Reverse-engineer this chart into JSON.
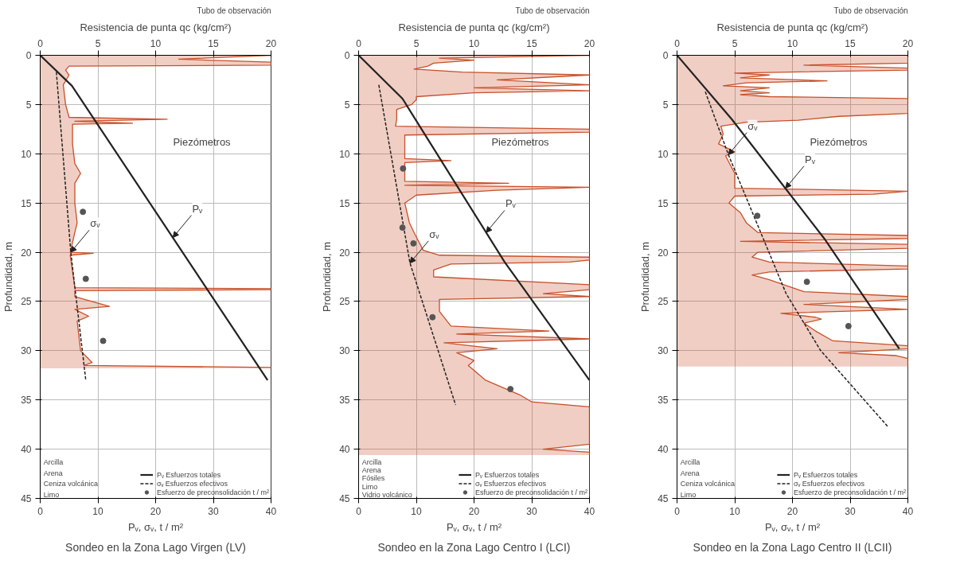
{
  "chart_data": [
    {
      "type": "line",
      "title": "Sondeo en la Zona Lago Virgen (LV)",
      "xlabel": "Pᵥ, σᵥ, t / m²",
      "x2label": "Resistencia de punta qc (kg/cm²)",
      "ylabel": "Profundidad, m",
      "orientation": "horizontal",
      "xlim": [
        0,
        40
      ],
      "xticks": [
        0,
        10,
        20,
        30,
        40
      ],
      "x2lim": [
        0,
        20
      ],
      "x2ticks": [
        0,
        5,
        10,
        15,
        20
      ],
      "ylim": [
        45,
        0
      ],
      "yticks": [
        0,
        5,
        10,
        15,
        20,
        25,
        30,
        35,
        40,
        45
      ],
      "grid": true,
      "legend": "bottom right",
      "series": [
        {
          "type": "area",
          "axis": "x2",
          "color": "#c8502a",
          "values": [
            20,
            12,
            20,
            20,
            2.5,
            2.2,
            2.5,
            2,
            2.2,
            2.5,
            11,
            3,
            8,
            2.8,
            2.8,
            3,
            3.5,
            3,
            3,
            3.2,
            3,
            2.6,
            4.6,
            2.6,
            3,
            20,
            20,
            3,
            3,
            6,
            3,
            4.2,
            3.2,
            3.5,
            4.5,
            3.8,
            20,
            20
          ],
          "x": [
            0,
            0.4,
            0.7,
            1.0,
            1.1,
            1.5,
            2,
            3,
            5,
            6.3,
            6.5,
            6.7,
            6.9,
            7,
            9,
            11,
            12,
            13,
            15,
            17,
            18,
            20,
            20.1,
            20.3,
            23.6,
            23.7,
            23.8,
            23.9,
            24.5,
            25.5,
            25.8,
            26.5,
            27,
            30,
            31.2,
            31.5,
            31.7,
            31.8
          ]
        },
        {
          "name": "Pᵥ Esfuerzos totales",
          "color": "#222222",
          "line_style": "solid",
          "values": [
            0,
            5.5,
            39.4
          ],
          "x": [
            0,
            3.1,
            33
          ]
        },
        {
          "name": "σᵥ Esfuerzos efectivos",
          "color": "#222222",
          "line_style": "dashed",
          "values": [
            2.8,
            5.3,
            7.9
          ],
          "x": [
            1.7,
            20,
            33
          ]
        },
        {
          "type": "scatter",
          "name": "Esfuerzo de preconsolidación t / m²",
          "color": "#555555",
          "marker": "circle",
          "values": [
            7.4,
            7.9,
            10.9
          ],
          "x": [
            15.9,
            22.7,
            29
          ]
        }
      ],
      "annotations": [
        "Tubo de observación",
        "Piezómetros",
        "Arcilla",
        "Arena",
        "Ceniza volcánica",
        "Limo",
        {
          "text": "Pᵥ",
          "x": 23,
          "y": 18.5
        },
        {
          "text": "σᵥ",
          "x": 5.3,
          "y": 20
        }
      ]
    },
    {
      "type": "line",
      "title": "Sondeo en la Zona Lago Centro I (LCI)",
      "xlabel": "Pᵥ, σᵥ, t / m²",
      "x2label": "Resistencia de punta qc (kg/cm²)",
      "ylabel": "Profundidad, m",
      "orientation": "horizontal",
      "xlim": [
        0,
        40
      ],
      "xticks": [
        0,
        10,
        20,
        30,
        40
      ],
      "x2lim": [
        0,
        20
      ],
      "x2ticks": [
        0,
        5,
        10,
        15,
        20
      ],
      "ylim": [
        45,
        0
      ],
      "yticks": [
        0,
        5,
        10,
        15,
        20,
        25,
        30,
        35,
        40,
        45
      ],
      "grid": true,
      "legend": "bottom right",
      "series": [
        {
          "type": "area",
          "axis": "x2",
          "color": "#c8502a",
          "values": [
            20,
            7,
            10,
            6.5,
            6,
            4.8,
            9,
            20,
            12,
            20,
            10,
            20,
            10,
            5,
            5,
            4.6,
            3.3,
            3.3,
            3.2,
            20,
            20,
            4,
            4,
            8,
            4,
            4,
            13,
            4,
            20,
            12,
            5,
            4,
            4.4,
            4.8,
            5.6,
            7,
            20,
            20,
            18.3,
            8,
            6.5,
            6.5,
            20,
            20,
            16,
            20,
            7,
            7,
            7,
            8,
            16.5,
            8.5,
            20,
            7.4,
            12,
            8.5,
            10,
            9.5,
            10,
            11,
            14,
            15,
            20,
            20,
            16,
            20,
            20
          ],
          "x": [
            0,
            0.3,
            0.5,
            0.8,
            1.1,
            1.4,
            1.7,
            2,
            2.5,
            3,
            3.3,
            3.6,
            3.8,
            4.2,
            4.5,
            5,
            5.5,
            6.5,
            7.2,
            7.5,
            7.8,
            8.1,
            10.5,
            10.7,
            10.9,
            12.8,
            13,
            13.2,
            13.4,
            13.7,
            14.2,
            15,
            17,
            18,
            19.8,
            20.3,
            20.5,
            20.8,
            21,
            21.2,
            21.8,
            22.5,
            23.3,
            23.8,
            24.2,
            24.5,
            24.8,
            25,
            26,
            27.5,
            28,
            28.3,
            28.8,
            29.2,
            29.8,
            30.2,
            31,
            31.5,
            32,
            33,
            34.5,
            35.2,
            35.7,
            39.5,
            40,
            40.3,
            40.6
          ]
        },
        {
          "name": "Pᵥ Esfuerzos totales",
          "color": "#222222",
          "line_style": "solid",
          "values": [
            0,
            7.6,
            25.3,
            40
          ],
          "x": [
            0,
            4.4,
            21,
            33
          ]
        },
        {
          "name": "σᵥ Esfuerzos efectivos",
          "color": "#222222",
          "line_style": "dashed",
          "values": [
            3.5,
            8.9,
            16.8
          ],
          "x": [
            3,
            21.1,
            35.5
          ]
        },
        {
          "type": "scatter",
          "name": "Esfuerzo de preconsolidación t / m²",
          "color": "#555555",
          "marker": "circle",
          "values": [
            7.7,
            7.6,
            9.5,
            12.8,
            26.3
          ],
          "x": [
            11.5,
            17.5,
            19.1,
            26.6,
            33.9
          ]
        }
      ],
      "annotations": [
        "Tubo de observación",
        "Piezómetros",
        "Arcilla",
        "Arena",
        "Fósiles",
        "Limo",
        "Vidrio volcánico",
        {
          "text": "Pᵥ",
          "x": 22.1,
          "y": 18
        },
        {
          "text": "σᵥ",
          "x": 8.9,
          "y": 21.1
        }
      ]
    },
    {
      "type": "line",
      "title": "Sondeo en la Zona Lago Centro II (LCII)",
      "xlabel": "Pᵥ, σᵥ, t / m²",
      "x2label": "Resistencia de punta qc (kg/cm²)",
      "ylabel": "Profundidad, m",
      "orientation": "horizontal",
      "xlim": [
        0,
        40
      ],
      "xticks": [
        0,
        10,
        20,
        30,
        40
      ],
      "x2lim": [
        0,
        20
      ],
      "x2ticks": [
        0,
        5,
        10,
        15,
        20
      ],
      "ylim": [
        45,
        0
      ],
      "yticks": [
        0,
        5,
        10,
        15,
        20,
        25,
        30,
        35,
        40,
        45
      ],
      "grid": true,
      "legend": "bottom right",
      "series": [
        {
          "type": "area",
          "axis": "x2",
          "color": "#c8502a",
          "values": [
            20,
            20,
            11,
            20,
            20,
            5,
            8,
            5.5,
            13,
            6,
            4,
            8,
            5.5,
            8,
            5.5,
            8,
            20,
            20,
            20,
            20,
            20,
            14,
            10.5,
            6,
            3.8,
            4,
            3.6,
            5,
            4.2,
            5,
            5,
            20,
            17,
            5,
            4.5,
            5.5,
            6,
            7,
            20,
            20,
            5.5,
            20,
            20,
            7,
            6.5,
            8,
            20,
            20,
            8,
            6.5,
            8,
            11,
            20,
            20,
            11,
            20,
            9,
            12,
            12.5,
            11,
            12,
            13.5,
            20,
            20,
            14,
            19,
            20,
            20,
            20
          ],
          "x": [
            0,
            0.8,
            1.0,
            1.3,
            1.5,
            1.8,
            2.0,
            2.3,
            2.6,
            2.8,
            3.1,
            3.3,
            3.6,
            3.8,
            4.0,
            4.2,
            4.4,
            4.7,
            5.2,
            5.6,
            5.9,
            6.2,
            6.6,
            6.8,
            7.2,
            8,
            9,
            9.8,
            10.2,
            12,
            13.5,
            13.8,
            14.1,
            14.3,
            15,
            16,
            17,
            18,
            18.3,
            18.6,
            18.9,
            19.2,
            19.6,
            20,
            20.5,
            21,
            21.4,
            21.7,
            22,
            22.3,
            22.8,
            24,
            24.5,
            24.8,
            25.3,
            25.8,
            26.2,
            26.6,
            26.8,
            27.2,
            28,
            29,
            29.5,
            29.8,
            30.2,
            30.5,
            30.8,
            31,
            31.6
          ]
        },
        {
          "name": "Pᵥ Esfuerzos totales",
          "color": "#222222",
          "line_style": "solid",
          "values": [
            0,
            9.5,
            25.5,
            38.5
          ],
          "x": [
            0,
            6.5,
            18.6,
            29.8
          ]
        },
        {
          "name": "σᵥ Esfuerzos efectivos",
          "color": "#222222",
          "line_style": "dashed",
          "values": [
            4.9,
            8.9,
            18.9,
            24.9,
            36.5
          ],
          "x": [
            3.7,
            10.1,
            24.2,
            30.0,
            37.7
          ]
        },
        {
          "type": "scatter",
          "name": "Esfuerzo de preconsolidación t / m²",
          "color": "#555555",
          "marker": "circle",
          "values": [
            13.9,
            22.5,
            29.7
          ],
          "x": [
            16.3,
            23.0,
            27.5
          ]
        }
      ],
      "annotations": [
        "Tubo de observación",
        "Piezómetros",
        "Arcilla",
        "Arena",
        "Ceniza volcánica",
        "Limo",
        {
          "text": "Pᵥ",
          "x": 18.8,
          "y": 13.5
        },
        {
          "text": "σᵥ",
          "x": 8.9,
          "y": 10.1
        }
      ]
    }
  ]
}
